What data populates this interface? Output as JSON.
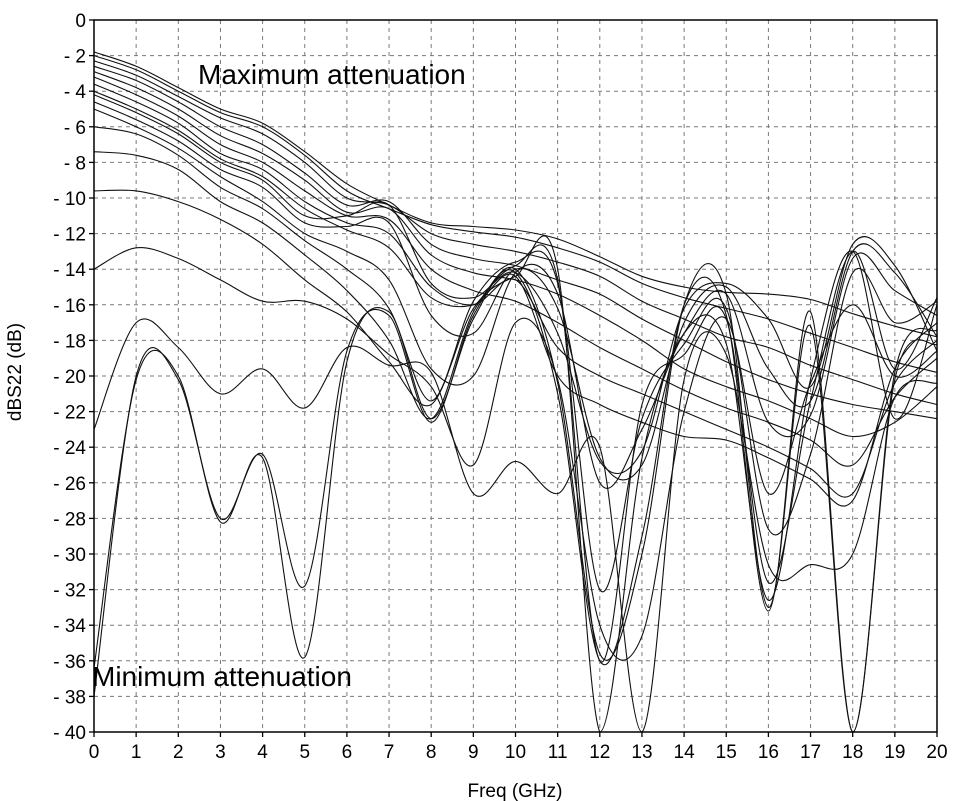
{
  "chart_data": {
    "type": "line",
    "xlabel": "Freq (GHz)",
    "ylabel": "dBS22 (dB)",
    "xlim": [
      0,
      20
    ],
    "ylim": [
      -40,
      0
    ],
    "x_ticks": [
      "0",
      "1",
      "2",
      "3",
      "4",
      "5",
      "6",
      "7",
      "8",
      "9",
      "10",
      "11",
      "12",
      "13",
      "14",
      "15",
      "16",
      "17",
      "18",
      "19",
      "20"
    ],
    "y_ticks": [
      "0",
      "- 2",
      "- 4",
      "- 6",
      "- 8",
      "- 10",
      "- 12",
      "- 14",
      "- 16",
      "- 18",
      "- 20",
      "- 22",
      "- 24",
      "- 26",
      "- 28",
      "- 30",
      "- 32",
      "- 34",
      "- 36",
      "- 38",
      "- 40"
    ],
    "grid": true,
    "annotations": [
      {
        "text": "Maximum attenuation",
        "x": 2.5,
        "y": -3.7
      },
      {
        "text": "Minimum attenuation",
        "x": 0,
        "y": -38.3
      }
    ],
    "x": [
      0,
      1,
      2,
      3,
      4,
      5,
      6,
      7,
      8,
      9,
      10,
      11,
      12,
      13,
      14,
      15,
      16,
      17,
      18,
      19,
      20
    ],
    "series": [
      {
        "values": [
          -1.8,
          -2.6,
          -3.8,
          -5.0,
          -5.8,
          -7.4,
          -9.2,
          -10.4,
          -11.4,
          -11.6,
          -11.8,
          -12.3,
          -13.3,
          -14.4,
          -15.0,
          -15.3,
          -15.4,
          -15.7,
          -16.5,
          -17.2,
          -17.8
        ]
      },
      {
        "values": [
          -2.0,
          -2.8,
          -4.0,
          -5.2,
          -6.0,
          -7.6,
          -9.6,
          -10.6,
          -11.5,
          -11.9,
          -12.2,
          -12.8,
          -13.6,
          -14.8,
          -15.6,
          -16.2,
          -16.8,
          -17.6,
          -18.4,
          -19.2,
          -19.8
        ]
      },
      {
        "values": [
          -2.3,
          -3.1,
          -4.3,
          -5.5,
          -6.4,
          -8.0,
          -10.0,
          -10.4,
          -12.0,
          -12.6,
          -13.0,
          -13.6,
          -14.4,
          -15.8,
          -16.8,
          -17.8,
          -18.4,
          -19.4,
          -20.2,
          -21.0,
          -21.6
        ]
      },
      {
        "values": [
          -2.6,
          -3.4,
          -4.6,
          -6.0,
          -7.0,
          -8.6,
          -10.4,
          -10.2,
          -12.6,
          -13.4,
          -13.8,
          -14.6,
          -15.4,
          -16.8,
          -18.0,
          -19.2,
          -20.2,
          -21.0,
          -21.6,
          -22.0,
          -22.4
        ]
      },
      {
        "values": [
          -2.9,
          -3.8,
          -5.0,
          -6.5,
          -7.5,
          -9.0,
          -10.8,
          -10.6,
          -13.2,
          -14.2,
          -14.6,
          -15.4,
          -16.6,
          -18.0,
          -19.6,
          -20.6,
          -21.4,
          -22.4,
          -23.4,
          -22.6,
          -20.6
        ]
      },
      {
        "values": [
          -3.2,
          -4.2,
          -5.4,
          -7.0,
          -8.0,
          -9.6,
          -11.0,
          -11.2,
          -14.0,
          -15.2,
          -15.8,
          -17.0,
          -18.4,
          -19.6,
          -20.8,
          -21.8,
          -22.6,
          -23.6,
          -25.0,
          -21.2,
          -19.0
        ]
      },
      {
        "values": [
          -3.6,
          -4.6,
          -5.8,
          -7.5,
          -8.4,
          -10.2,
          -11.4,
          -12.0,
          -15.0,
          -16.0,
          -14.6,
          -18.4,
          -20.0,
          -21.0,
          -22.0,
          -23.0,
          -24.0,
          -25.2,
          -26.6,
          -20.4,
          -18.0
        ]
      },
      {
        "values": [
          -4.0,
          -5.0,
          -6.2,
          -7.8,
          -8.8,
          -10.6,
          -11.8,
          -12.8,
          -15.6,
          -16.0,
          -14.4,
          -20.0,
          -21.6,
          -22.6,
          -23.4,
          -23.6,
          -24.6,
          -25.8,
          -27.0,
          -19.6,
          -17.0
        ]
      },
      {
        "values": [
          -4.2,
          -5.2,
          -6.4,
          -8.0,
          -9.0,
          -11.0,
          -11.0,
          -10.4,
          -14.8,
          -15.6,
          -14.2,
          -17.6,
          -24.8,
          -24.2,
          -16.2,
          -14.8,
          -16.8,
          -20.6,
          -12.6,
          -13.8,
          -18.6
        ]
      },
      {
        "values": [
          -4.6,
          -5.6,
          -6.8,
          -8.4,
          -9.4,
          -11.4,
          -11.6,
          -11.4,
          -16.6,
          -17.6,
          -14.0,
          -16.2,
          -24.6,
          -25.0,
          -17.0,
          -15.0,
          -19.6,
          -21.4,
          -13.0,
          -14.2,
          -17.8
        ]
      },
      {
        "values": [
          -5.0,
          -6.0,
          -7.2,
          -8.8,
          -10.2,
          -12.0,
          -13.0,
          -14.6,
          -19.6,
          -20.0,
          -14.2,
          -15.4,
          -26.0,
          -23.0,
          -17.6,
          -15.4,
          -22.6,
          -22.2,
          -13.4,
          -15.2,
          -16.6
        ]
      },
      {
        "values": [
          -6.0,
          -6.4,
          -7.6,
          -9.4,
          -10.6,
          -12.4,
          -14.0,
          -16.2,
          -21.4,
          -15.8,
          -13.6,
          -14.8,
          -32.0,
          -22.4,
          -18.2,
          -16.2,
          -28.6,
          -24.4,
          -14.2,
          -17.0,
          -15.8
        ]
      },
      {
        "values": [
          -7.4,
          -7.6,
          -8.4,
          -10.2,
          -11.4,
          -13.2,
          -15.2,
          -18.0,
          -22.4,
          -16.4,
          -13.8,
          -14.6,
          -36.0,
          -21.6,
          -18.8,
          -16.8,
          -31.6,
          -21.4,
          -13.0,
          -19.6,
          -15.6
        ]
      },
      {
        "values": [
          -9.6,
          -9.6,
          -10.2,
          -11.2,
          -12.6,
          -14.6,
          -16.4,
          -19.2,
          -21.6,
          -16.2,
          -14.4,
          -14.0,
          -40.0,
          -24.6,
          -17.6,
          -18.2,
          -32.6,
          -20.2,
          -13.0,
          -22.4,
          -16.0
        ]
      },
      {
        "values": [
          -14.0,
          -12.8,
          -13.4,
          -14.6,
          -15.8,
          -15.8,
          -16.8,
          -18.8,
          -20.6,
          -25.0,
          -17.0,
          -20.2,
          -34.0,
          -34.6,
          -22.0,
          -16.8,
          -26.6,
          -20.4,
          -16.0,
          -20.0,
          -18.6
        ]
      },
      {
        "values": [
          -23.0,
          -17.0,
          -18.4,
          -21.0,
          -19.6,
          -21.8,
          -18.4,
          -19.4,
          -19.8,
          -26.6,
          -24.8,
          -26.6,
          -24.0,
          -40.0,
          -20.2,
          -18.8,
          -30.6,
          -30.6,
          -30.0,
          -21.2,
          -20.4
        ]
      },
      {
        "values": [
          -38.0,
          -20.0,
          -20.2,
          -28.0,
          -24.4,
          -31.8,
          -18.6,
          -16.6,
          -22.6,
          -16.6,
          -14.2,
          -21.0,
          -36.0,
          -29.0,
          -16.0,
          -16.6,
          -33.2,
          -16.4,
          -40.0,
          -20.2,
          -18.2
        ]
      },
      {
        "values": [
          -36.4,
          -20.2,
          -20.0,
          -28.2,
          -24.6,
          -35.8,
          -19.2,
          -16.4,
          -22.4,
          -16.8,
          -14.0,
          -20.4,
          -35.6,
          -30.0,
          -16.0,
          -15.4,
          -33.0,
          -17.2,
          -40.0,
          -19.8,
          -17.4
        ]
      }
    ]
  }
}
